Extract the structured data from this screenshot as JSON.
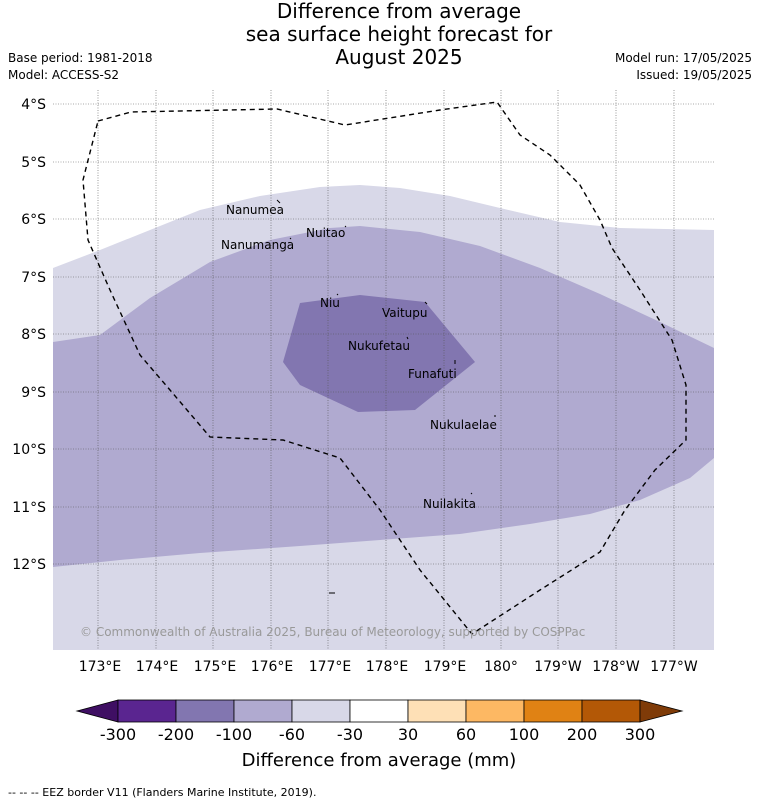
{
  "title": {
    "line1": "Difference from average",
    "line2": "sea surface height forecast for",
    "line3": "August 2025"
  },
  "meta": {
    "base_period": "Base period: 1981-2018",
    "model": "Model: ACCESS-S2",
    "model_run": "Model run: 17/05/2025",
    "issued": "Issued: 19/05/2025"
  },
  "map": {
    "lat_labels": [
      "4°S",
      "5°S",
      "6°S",
      "7°S",
      "8°S",
      "9°S",
      "10°S",
      "11°S",
      "12°S"
    ],
    "lon_labels": [
      "173°E",
      "174°E",
      "175°E",
      "176°E",
      "177°E",
      "178°E",
      "179°E",
      "180°",
      "179°W",
      "178°W",
      "177°W"
    ],
    "places": [
      "Nanumea",
      "Nuitao",
      "Nanumanga",
      "Niu",
      "Vaitupu",
      "Nukufetau",
      "Funafuti",
      "Nukulaelae",
      "Nuilakita"
    ],
    "copyright": "© Commonwealth of Australia 2025, Bureau of Meteorology, supported by COSPPac",
    "colors": {
      "band_-60_-30": "#d8d8e8",
      "band_-100_-60": "#b0aad0",
      "band_-200_-100": "#8276b0",
      "eez_line": "#000000"
    }
  },
  "colorbar": {
    "ticks": [
      "-300",
      "-200",
      "-100",
      "-60",
      "-30",
      "30",
      "60",
      "100",
      "200",
      "300"
    ],
    "colors": [
      "#3f0f63",
      "#5a2590",
      "#8276b0",
      "#b0aad0",
      "#d8d8e8",
      "#ffffff",
      "#fee0b6",
      "#fdb863",
      "#e08214",
      "#b35806",
      "#7f3b08"
    ],
    "label": "Difference from average (mm)"
  },
  "footer": "-- -- -- EEZ border V11 (Flanders Marine Institute, 2019)."
}
